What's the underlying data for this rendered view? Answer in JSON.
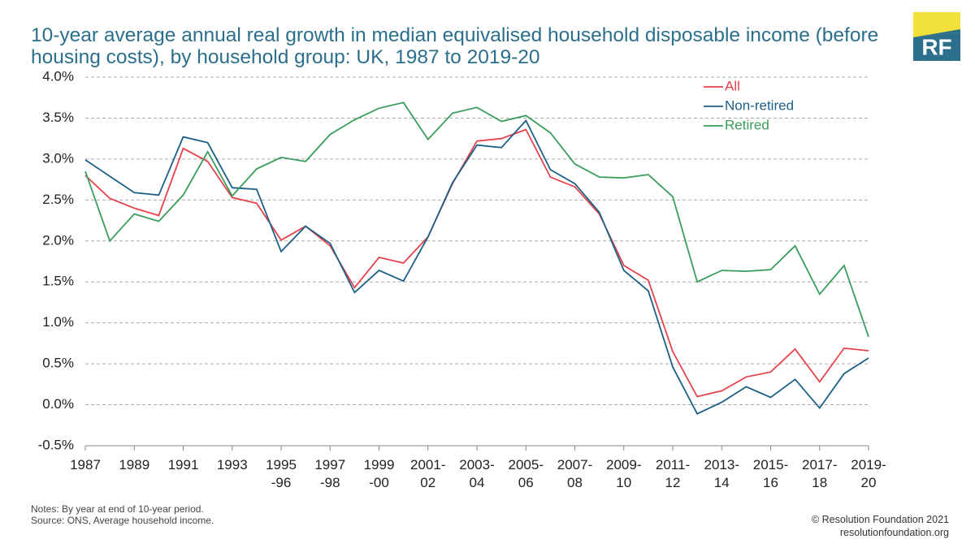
{
  "chart_data": {
    "type": "line",
    "title": "10-year average annual real growth in median equivalised household disposable income (before\nhousing costs), by household group: UK, 1987 to 2019-20",
    "categories": [
      "1987",
      null,
      "1989",
      null,
      "1991",
      null,
      "1993",
      null,
      "1995\n-96",
      null,
      "1997\n-98",
      null,
      "1999\n-00",
      null,
      "2001-\n02",
      null,
      "2003-\n04",
      null,
      "2005-\n06",
      null,
      "2007-\n08",
      null,
      "2009-\n10",
      null,
      "2011-\n12",
      null,
      "2013-\n14",
      null,
      "2015-\n16",
      null,
      "2017-\n18",
      null,
      "2019-\n20"
    ],
    "series": [
      {
        "name": "All",
        "color": "#e5434b",
        "values": [
          2.8,
          2.52,
          2.4,
          2.31,
          3.13,
          2.97,
          2.53,
          2.46,
          2.01,
          2.18,
          1.94,
          1.43,
          1.8,
          1.73,
          2.05,
          2.7,
          3.22,
          3.25,
          3.36,
          2.78,
          2.66,
          2.33,
          1.7,
          1.52,
          0.65,
          0.1,
          0.17,
          0.34,
          0.4,
          0.68,
          0.28,
          0.69,
          0.66
        ]
      },
      {
        "name": "Non-retired",
        "color": "#1d5f86",
        "values": [
          2.99,
          2.79,
          2.59,
          2.56,
          3.27,
          3.2,
          2.65,
          2.63,
          1.87,
          2.18,
          1.97,
          1.37,
          1.64,
          1.51,
          2.05,
          2.71,
          3.17,
          3.14,
          3.47,
          2.87,
          2.7,
          2.35,
          1.64,
          1.39,
          0.46,
          -0.11,
          0.03,
          0.22,
          0.09,
          0.31,
          -0.04,
          0.38,
          0.57
        ]
      },
      {
        "name": "Retired",
        "color": "#3a9d5d",
        "values": [
          2.85,
          2.0,
          2.33,
          2.24,
          2.56,
          3.09,
          2.55,
          2.88,
          3.02,
          2.97,
          3.3,
          3.48,
          3.62,
          3.69,
          3.24,
          3.56,
          3.63,
          3.46,
          3.53,
          3.32,
          2.94,
          2.78,
          2.77,
          2.81,
          2.54,
          1.5,
          1.64,
          1.63,
          1.65,
          1.94,
          1.35,
          1.7,
          0.83
        ]
      }
    ],
    "ylim": [
      -0.5,
      4.0
    ],
    "yticks": [
      {
        "value": -0.5,
        "label": "-0.5%"
      },
      {
        "value": 0,
        "label": "0.0%"
      },
      {
        "value": 0.5,
        "label": "0.5%"
      },
      {
        "value": 1.0,
        "label": "1.0%"
      },
      {
        "value": 1.5,
        "label": "1.5%"
      },
      {
        "value": 2.0,
        "label": "2.0%"
      },
      {
        "value": 2.5,
        "label": "2.5%"
      },
      {
        "value": 3.0,
        "label": "3.0%"
      },
      {
        "value": 3.5,
        "label": "3.5%"
      },
      {
        "value": 4.0,
        "label": "4.0%"
      }
    ],
    "grid": true,
    "legend": "top-right",
    "notes": "Notes: By year at end of 10-year period.",
    "source": "Source: ONS, Average household income.",
    "copyright": "© Resolution Foundation 2021",
    "website": "resolutionfoundation.org",
    "logo": "RF"
  }
}
